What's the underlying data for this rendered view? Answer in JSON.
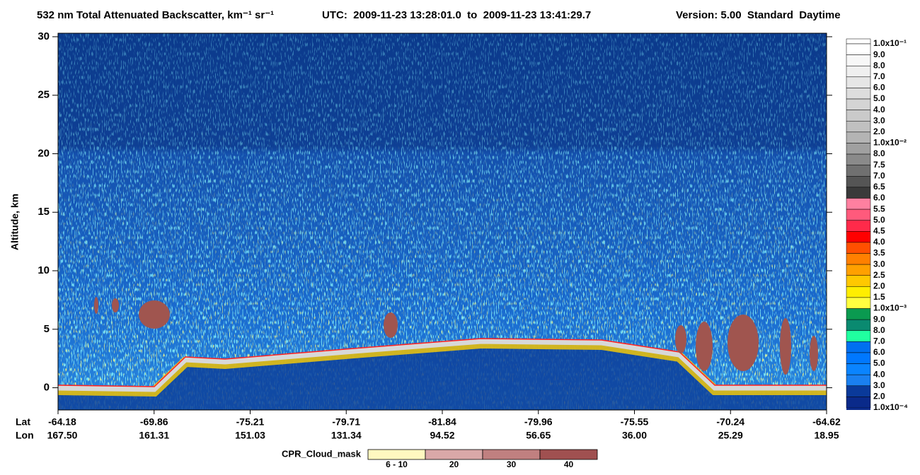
{
  "chart_data": {
    "type": "heatmap",
    "title": "532 nm Total Attenuated Backscatter, km⁻¹ sr⁻¹",
    "subtitle": "UTC:  2009-11-23 13:28:01.0  to  2009-11-23 13:41:29.7",
    "version": "Version: 5.00  Standard  Daytime",
    "ylabel": "Altitude, km",
    "ylim": [
      -1.9,
      30.3
    ],
    "yticks": [
      0,
      5,
      10,
      15,
      20,
      25,
      30
    ],
    "lat_label": "Lat",
    "lon_label": "Lon",
    "lat": [
      "-64.18",
      "-69.86",
      "-75.21",
      "-79.71",
      "-81.84",
      "-79.96",
      "-75.55",
      "-70.24",
      "-64.62"
    ],
    "lon": [
      "167.50",
      "161.31",
      "151.03",
      "131.34",
      "94.52",
      "56.65",
      "36.00",
      "25.29",
      "18.95"
    ],
    "colorbar": {
      "labels": [
        "1.0x10⁻¹",
        "9.0",
        "8.0",
        "7.0",
        "6.0",
        "5.0",
        "4.0",
        "3.0",
        "2.0",
        "1.0x10⁻²",
        "8.0",
        "7.5",
        "7.0",
        "6.5",
        "6.0",
        "5.5",
        "5.0",
        "4.5",
        "4.0",
        "3.5",
        "3.0",
        "2.5",
        "2.0",
        "1.5",
        "1.0x10⁻³",
        "9.0",
        "8.0",
        "7.0",
        "6.0",
        "5.0",
        "4.0",
        "3.0",
        "2.0",
        "1.0x10⁻⁴"
      ],
      "colors": [
        "#ffffff",
        "#f7f7f7",
        "#efefef",
        "#e6e6e6",
        "#dddddd",
        "#d4d4d4",
        "#cacaca",
        "#c0c0c0",
        "#b4b4b4",
        "#a0a0a0",
        "#8a8a8a",
        "#707070",
        "#555555",
        "#3a3a3a",
        "#ff80a0",
        "#ff5a7c",
        "#ff2a4a",
        "#ff0000",
        "#ff5000",
        "#ff8000",
        "#ffa000",
        "#ffc800",
        "#ffee00",
        "#ffff40",
        "#0a9a50",
        "#0a8a70",
        "#20ffa0",
        "#0070f0",
        "#0078ff",
        "#0a84ff",
        "#1a80f0",
        "#0a3a9a",
        "#0a2a8a"
      ]
    },
    "cloud_mask": {
      "label": "CPR_Cloud_mask",
      "labels": [
        "6 - 10",
        "20",
        "30",
        "40"
      ],
      "colors": [
        "#fff8c0",
        "#d9a8a8",
        "#c08080",
        "#a05050"
      ]
    }
  }
}
